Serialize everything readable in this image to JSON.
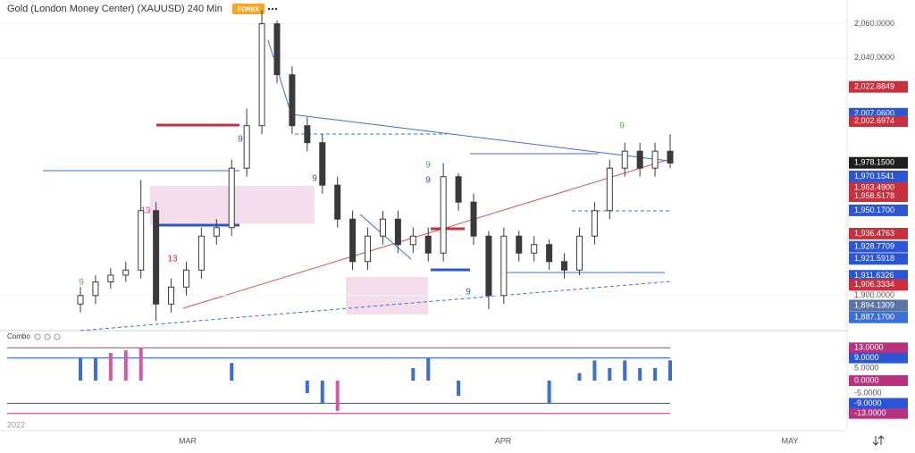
{
  "chart_data": {
    "type": "candlestick",
    "title": "Gold (London Money Center) (XAUUSD) 240 Min",
    "badge": "FOREX",
    "indicator_name": "Combo",
    "x_labels": [
      "2022",
      "MAR",
      "APR",
      "MAY"
    ],
    "open": [
      1895,
      1900,
      1908,
      1912,
      1915,
      1950,
      1895,
      1905,
      1915,
      1935,
      1940,
      1975,
      2000,
      2060,
      2030,
      2000,
      1990,
      1965,
      1945,
      1920,
      1935,
      1945,
      1930,
      1935,
      1925,
      1970,
      1955,
      1935,
      1900,
      1935,
      1925,
      1930,
      1920,
      1915,
      1935,
      1950,
      1975,
      1985,
      1975,
      1985
    ],
    "high": [
      1905,
      1912,
      1916,
      1920,
      1968,
      1955,
      1910,
      1920,
      1940,
      1945,
      1980,
      2010,
      2068,
      2062,
      2035,
      2005,
      1995,
      1970,
      1950,
      1940,
      1950,
      1950,
      1940,
      1940,
      1978,
      1972,
      1960,
      1938,
      1940,
      1938,
      1935,
      1933,
      1925,
      1940,
      1955,
      1980,
      1990,
      1990,
      1990,
      1995
    ],
    "low": [
      1890,
      1895,
      1904,
      1908,
      1910,
      1885,
      1890,
      1900,
      1910,
      1930,
      1935,
      1970,
      1995,
      2025,
      1995,
      1985,
      1960,
      1940,
      1915,
      1915,
      1930,
      1925,
      1925,
      1920,
      1920,
      1950,
      1930,
      1892,
      1895,
      1920,
      1920,
      1915,
      1910,
      1912,
      1930,
      1945,
      1970,
      1970,
      1970,
      1975
    ],
    "close": [
      1900,
      1908,
      1912,
      1915,
      1950,
      1895,
      1905,
      1915,
      1935,
      1940,
      1975,
      2000,
      2060,
      2030,
      2000,
      1990,
      1965,
      1945,
      1920,
      1935,
      1945,
      1930,
      1935,
      1925,
      1970,
      1955,
      1935,
      1900,
      1935,
      1925,
      1930,
      1920,
      1915,
      1935,
      1950,
      1975,
      1985,
      1975,
      1985,
      1978
    ],
    "candle_color": "#3a3a3a",
    "ylim": [
      1882,
      2074
    ],
    "yticks": [
      {
        "value": 2060,
        "label": "2,060.0000"
      },
      {
        "value": 2040,
        "label": "2,040.0000"
      },
      {
        "value": 1900,
        "label": "1,900.0000"
      }
    ],
    "grid": true,
    "price_tags": [
      {
        "value": 2022.8849,
        "label": "2,022.8849",
        "color": "#c9303e"
      },
      {
        "value": 2007.06,
        "label": "2,007.0600",
        "color": "#2a56d6"
      },
      {
        "value": 2002.6974,
        "label": "2,002.6974",
        "color": "#c9303e"
      },
      {
        "value": 1978.15,
        "label": "1,978.1500",
        "color": "#1e1e1e"
      },
      {
        "value": 1970.1541,
        "label": "1,970.1541",
        "color": "#2a56d6"
      },
      {
        "value": 1963.49,
        "label": "1,963.4900",
        "color": "#c9303e"
      },
      {
        "value": 1958.5178,
        "label": "1,958.5178",
        "color": "#c9303e"
      },
      {
        "value": 1950.17,
        "label": "1,950.1700",
        "color": "#2a56d6"
      },
      {
        "value": 1936.4763,
        "label": "1,936.4763",
        "color": "#c9303e"
      },
      {
        "value": 1928.7709,
        "label": "1,928.7709",
        "color": "#2a56d6"
      },
      {
        "value": 1921.5918,
        "label": "1,921.5918",
        "color": "#2a56d6"
      },
      {
        "value": 1911.6326,
        "label": "1,911.6326",
        "color": "#2a56d6"
      },
      {
        "value": 1906.3334,
        "label": "1,906.3334",
        "color": "#c9303e"
      },
      {
        "value": 1894.1309,
        "label": "1,894.1309",
        "color": "#5b74a8"
      },
      {
        "value": 1887.17,
        "label": "1,887.1700",
        "color": "#3a6fd8"
      }
    ],
    "indicator": {
      "values": [
        9,
        9,
        11,
        12,
        13,
        0,
        0,
        0,
        0,
        0,
        7,
        0,
        0,
        0,
        0,
        -5,
        -9,
        -12,
        0,
        0,
        0,
        0,
        5,
        9,
        0,
        -6,
        0,
        0,
        0,
        0,
        0,
        -9,
        0,
        3,
        8,
        5,
        8,
        5,
        5,
        8
      ],
      "ylim": [
        -17,
        17
      ],
      "yticks": [
        {
          "value": 5,
          "label": "5.0000"
        },
        {
          "value": -5,
          "label": "-5.0000"
        }
      ],
      "tags": [
        {
          "value": 13,
          "label": "13.0000",
          "color": "#b8327e"
        },
        {
          "value": 9,
          "label": "9.0000",
          "color": "#2a56d6"
        },
        {
          "value": 0,
          "label": "0.0000",
          "color": "#b8327e"
        },
        {
          "value": -9,
          "label": "-9.0000",
          "color": "#2a56d6"
        },
        {
          "value": -13,
          "label": "-13.0000",
          "color": "#b8327e"
        }
      ]
    },
    "annotations": [
      "9",
      "9",
      "13",
      "9",
      "9",
      "13",
      "9",
      "9",
      "9",
      "9"
    ]
  }
}
